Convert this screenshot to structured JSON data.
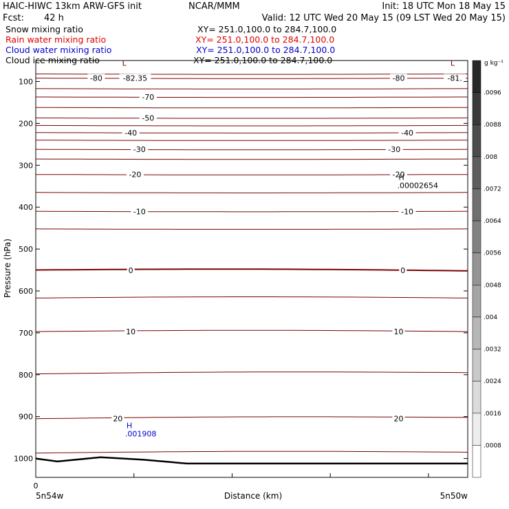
{
  "header": {
    "model": "HAIC-HIWC 13km ARW-GFS init",
    "org": "NCAR/MMM",
    "init": "Init: 18 UTC Mon 18 May 15",
    "fcst_label": "Fcst:",
    "fcst_value": "42 h",
    "valid": "Valid: 12 UTC Wed 20 May 15 (09 LST Wed 20 May 15)"
  },
  "legend": [
    {
      "label": "Snow mixing ratio",
      "xy": "XY= 251.0,100.0 to 284.7,100.0",
      "color": "#000000"
    },
    {
      "label": "Rain water mixing ratio",
      "xy": "XY= 251.0,100.0 to 284.7,100.0",
      "color": "#e00000"
    },
    {
      "label": "Cloud water mixing ratio",
      "xy": "XY= 251.0,100.0 to 284.7,100.0",
      "color": "#0000cc"
    },
    {
      "label": "Cloud ice mixing ratio",
      "xy": "XY= 251.0,100.0 to 284.7,100.0",
      "color": "#000000"
    }
  ],
  "colors": {
    "isotherm": "#7a0000",
    "terrain": "#000000",
    "cloud_water": "#0000cc",
    "frame": "#000000"
  },
  "chart_data": {
    "type": "contour",
    "xlabel": "Distance (km)",
    "ylabel": "Pressure (hPa)",
    "x_ticks": {
      "left_value": "0",
      "left_label": "5n54w",
      "right_label": "5n50w"
    },
    "y_ticks": [
      100,
      200,
      300,
      400,
      500,
      600,
      700,
      800,
      900,
      1000
    ],
    "ylim_hPa": [
      50,
      1045
    ],
    "isotherms_degC": [
      {
        "value": -82.35,
        "p_left": 82,
        "p_right": 82
      },
      {
        "value": -80,
        "p_left": 92,
        "p_right": 92
      },
      {
        "value": -75,
        "p_left": 117,
        "p_right": 117
      },
      {
        "value": -70,
        "p_left": 137,
        "p_right": 137
      },
      {
        "value": -60,
        "p_left": 162,
        "p_right": 162
      },
      {
        "value": -50,
        "p_left": 187,
        "p_right": 187
      },
      {
        "value": -45,
        "p_left": 205,
        "p_right": 205
      },
      {
        "value": -40,
        "p_left": 222,
        "p_right": 222
      },
      {
        "value": -35,
        "p_left": 240,
        "p_right": 240
      },
      {
        "value": -30,
        "p_left": 262,
        "p_right": 262
      },
      {
        "value": -25,
        "p_left": 285,
        "p_right": 285
      },
      {
        "value": -20,
        "p_left": 322,
        "p_right": 322
      },
      {
        "value": -15,
        "p_left": 365,
        "p_right": 365
      },
      {
        "value": -10,
        "p_left": 410,
        "p_right": 410
      },
      {
        "value": -5,
        "p_left": 452,
        "p_right": 452
      },
      {
        "value": 0,
        "p_left": 550,
        "p_right": 552
      },
      {
        "value": 5,
        "p_left": 617,
        "p_right": 617
      },
      {
        "value": 10,
        "p_left": 697,
        "p_right": 697
      },
      {
        "value": 15,
        "p_left": 798,
        "p_right": 795
      },
      {
        "value": 20,
        "p_left": 905,
        "p_right": 902
      },
      {
        "value": 25,
        "p_left": 987,
        "p_right": 985
      }
    ],
    "contour_labels": [
      {
        "text": "-80",
        "p": 92,
        "pos": 0.14
      },
      {
        "text": "-82.35",
        "p": 92,
        "pos": 0.23
      },
      {
        "text": "-80",
        "p": 92,
        "pos": 0.84
      },
      {
        "text": "-81.",
        "p": 92,
        "pos": 0.97
      },
      {
        "text": "-70",
        "p": 137,
        "pos": 0.26
      },
      {
        "text": "-50",
        "p": 187,
        "pos": 0.26
      },
      {
        "text": "-40",
        "p": 222,
        "pos": 0.22
      },
      {
        "text": "-40",
        "p": 222,
        "pos": 0.86
      },
      {
        "text": "-30",
        "p": 262,
        "pos": 0.24
      },
      {
        "text": "-30",
        "p": 262,
        "pos": 0.83
      },
      {
        "text": "-20",
        "p": 322,
        "pos": 0.23
      },
      {
        "text": "-20",
        "p": 322,
        "pos": 0.84
      },
      {
        "text": "-10",
        "p": 410,
        "pos": 0.24
      },
      {
        "text": "-10",
        "p": 410,
        "pos": 0.86
      },
      {
        "text": "0",
        "p": 551,
        "pos": 0.22
      },
      {
        "text": "0",
        "p": 551,
        "pos": 0.85
      },
      {
        "text": "10",
        "p": 697,
        "pos": 0.22
      },
      {
        "text": "10",
        "p": 697,
        "pos": 0.84
      },
      {
        "text": "20",
        "p": 905,
        "pos": 0.19
      },
      {
        "text": "20",
        "p": 905,
        "pos": 0.84
      }
    ],
    "extrema": [
      {
        "symbol": "L",
        "value": "",
        "p": 62,
        "pos": 0.2,
        "color": "#7a0000"
      },
      {
        "symbol": "L",
        "value": "",
        "p": 62,
        "pos": 0.96,
        "color": "#7a0000"
      },
      {
        "symbol": "H",
        "value": ".00002654",
        "p": 335,
        "pos": 0.84,
        "color": "#000000"
      },
      {
        "symbol": "H",
        "value": ".001908",
        "p": 928,
        "pos": 0.21,
        "color": "#0000cc"
      }
    ],
    "terrain_hPa": [
      {
        "pos": 0.0,
        "p": 1000
      },
      {
        "pos": 0.05,
        "p": 1007
      },
      {
        "pos": 0.15,
        "p": 997
      },
      {
        "pos": 0.25,
        "p": 1003
      },
      {
        "pos": 0.35,
        "p": 1012
      },
      {
        "pos": 1.0,
        "p": 1012
      }
    ],
    "colorbar": {
      "unit": "g kg⁻¹",
      "labels": [
        ".0096",
        ".0088",
        ".008",
        ".0072",
        ".0064",
        ".0056",
        ".0048",
        ".004",
        ".0032",
        ".0024",
        ".0016",
        ".0008"
      ]
    }
  }
}
